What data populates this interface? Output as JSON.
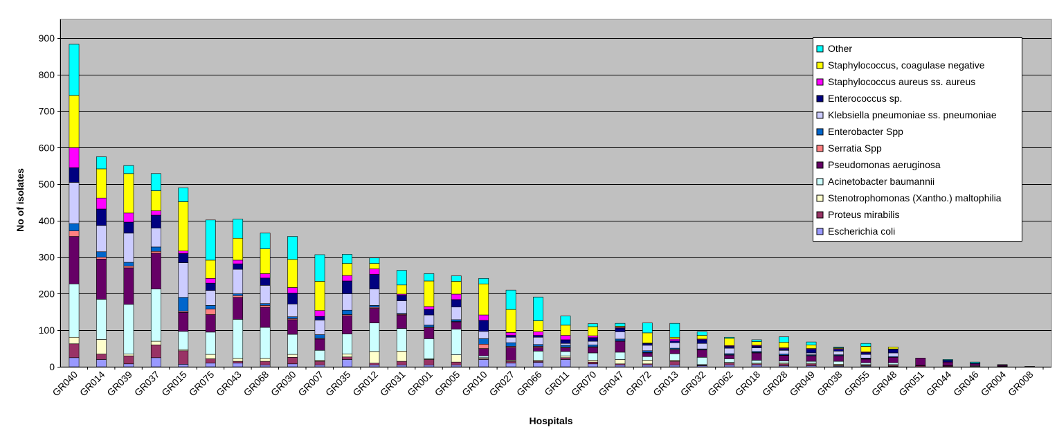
{
  "chart_data": {
    "type": "bar",
    "stacked": true,
    "title": "",
    "xlabel": "Hospitals",
    "ylabel": "No of isolates",
    "ylim": [
      0,
      900
    ],
    "yticks": [
      0,
      100,
      200,
      300,
      400,
      500,
      600,
      700,
      800,
      900
    ],
    "grid": "horizontal",
    "legend_position": "top-right",
    "plot_background": "#C0C0C0",
    "categories": [
      "GR040",
      "GR014",
      "GR039",
      "GR037",
      "GR015",
      "GR075",
      "GR043",
      "GR068",
      "GR030",
      "GR007",
      "GR035",
      "GR012",
      "GR031",
      "GR001",
      "GR005",
      "GR010",
      "GR027",
      "GR066",
      "GR011",
      "GR070",
      "GR047",
      "GR072",
      "GR013",
      "GR032",
      "GR062",
      "GR018",
      "GR028",
      "GR049",
      "GR038",
      "GR055",
      "GR048",
      "GR051",
      "GR044",
      "GR046",
      "GR004",
      "GR008"
    ],
    "series": [
      {
        "name": "Escherichia coli",
        "color": "#9999FF",
        "values": [
          25,
          20,
          8,
          25,
          7,
          10,
          10,
          5,
          8,
          5,
          20,
          5,
          5,
          5,
          5,
          20,
          10,
          12,
          20,
          8,
          5,
          5,
          5,
          3,
          5,
          5,
          3,
          3,
          2,
          2,
          1,
          0,
          0,
          0,
          0,
          0
        ]
      },
      {
        "name": "Proteus mirabilis",
        "color": "#993366",
        "values": [
          38,
          15,
          22,
          35,
          37,
          12,
          5,
          10,
          18,
          10,
          7,
          5,
          10,
          15,
          8,
          2,
          5,
          3,
          5,
          5,
          3,
          3,
          10,
          2,
          5,
          3,
          5,
          5,
          2,
          2,
          3,
          3,
          2,
          1,
          1,
          0
        ]
      },
      {
        "name": "Stenotrophomonas (Xantho.) maltophilia",
        "color": "#FFFFCC",
        "values": [
          18,
          40,
          5,
          10,
          3,
          12,
          8,
          8,
          8,
          3,
          8,
          32,
          28,
          2,
          20,
          3,
          3,
          3,
          5,
          5,
          12,
          10,
          3,
          1,
          2,
          2,
          3,
          2,
          3,
          2,
          2,
          1,
          1,
          0,
          0,
          0
        ]
      },
      {
        "name": "Acinetobacter baumannii",
        "color": "#CCFFFF",
        "values": [
          146,
          110,
          136,
          143,
          50,
          61,
          107,
          85,
          55,
          27,
          55,
          78,
          62,
          55,
          70,
          5,
          0,
          25,
          12,
          20,
          20,
          10,
          18,
          20,
          10,
          8,
          5,
          5,
          8,
          5,
          5,
          0,
          0,
          2,
          0,
          0
        ]
      },
      {
        "name": "Pseudomonas aeruginosa",
        "color": "#660066",
        "values": [
          130,
          110,
          100,
          98,
          52,
          48,
          60,
          55,
          40,
          31,
          50,
          40,
          37,
          30,
          20,
          20,
          35,
          10,
          10,
          15,
          30,
          10,
          10,
          20,
          10,
          20,
          15,
          15,
          15,
          10,
          15,
          20,
          10,
          5,
          3,
          1
        ]
      },
      {
        "name": "Serratia Spp",
        "color": "#FF8080",
        "values": [
          15,
          5,
          5,
          5,
          3,
          15,
          5,
          5,
          3,
          2,
          3,
          3,
          2,
          2,
          1,
          12,
          3,
          3,
          2,
          2,
          1,
          1,
          2,
          1,
          1,
          1,
          1,
          1,
          1,
          1,
          0,
          0,
          0,
          0,
          0,
          0
        ]
      },
      {
        "name": "Enterobacter Spp",
        "color": "#0066CC",
        "values": [
          20,
          15,
          10,
          12,
          38,
          10,
          5,
          5,
          5,
          10,
          12,
          5,
          2,
          5,
          5,
          15,
          10,
          5,
          5,
          5,
          5,
          5,
          3,
          2,
          3,
          3,
          3,
          2,
          2,
          2,
          2,
          0,
          0,
          0,
          0,
          0
        ]
      },
      {
        "name": "Klebsiella pneumoniae ss. pneumoniae",
        "color": "#CCCCFF",
        "values": [
          113,
          72,
          80,
          52,
          95,
          41,
          67,
          50,
          35,
          40,
          45,
          45,
          35,
          28,
          35,
          20,
          15,
          20,
          5,
          10,
          20,
          15,
          15,
          15,
          15,
          10,
          10,
          5,
          10,
          10,
          10,
          0,
          0,
          0,
          1,
          0
        ]
      },
      {
        "name": "Enterococcus sp.",
        "color": "#000080",
        "values": [
          40,
          45,
          30,
          35,
          25,
          20,
          15,
          20,
          30,
          10,
          35,
          40,
          15,
          15,
          20,
          30,
          5,
          5,
          10,
          10,
          10,
          5,
          5,
          10,
          5,
          5,
          5,
          10,
          5,
          5,
          10,
          0,
          5,
          2,
          0,
          0
        ]
      },
      {
        "name": "Staphylococcus aureus ss. aureus",
        "color": "#FF00FF",
        "values": [
          55,
          30,
          25,
          12,
          7,
          13,
          10,
          12,
          15,
          16,
          15,
          15,
          3,
          8,
          15,
          15,
          8,
          10,
          12,
          5,
          2,
          1,
          5,
          2,
          2,
          2,
          2,
          2,
          2,
          2,
          1,
          0,
          0,
          0,
          0,
          0
        ]
      },
      {
        "name": "Staphylococcus, coagulase negative",
        "color": "#FFFF00",
        "values": [
          143,
          80,
          108,
          55,
          135,
          50,
          60,
          68,
          77,
          80,
          33,
          15,
          25,
          70,
          35,
          85,
          63,
          30,
          28,
          25,
          3,
          28,
          5,
          10,
          20,
          10,
          15,
          10,
          2,
          15,
          5,
          0,
          0,
          0,
          0,
          0
        ]
      },
      {
        "name": "Other",
        "color": "#00FFFF",
        "values": [
          140,
          33,
          22,
          47,
          38,
          110,
          52,
          43,
          63,
          73,
          25,
          15,
          40,
          20,
          15,
          15,
          53,
          65,
          25,
          8,
          8,
          27,
          38,
          10,
          3,
          5,
          15,
          8,
          2,
          8,
          0,
          0,
          2,
          3,
          1,
          0
        ]
      }
    ]
  }
}
